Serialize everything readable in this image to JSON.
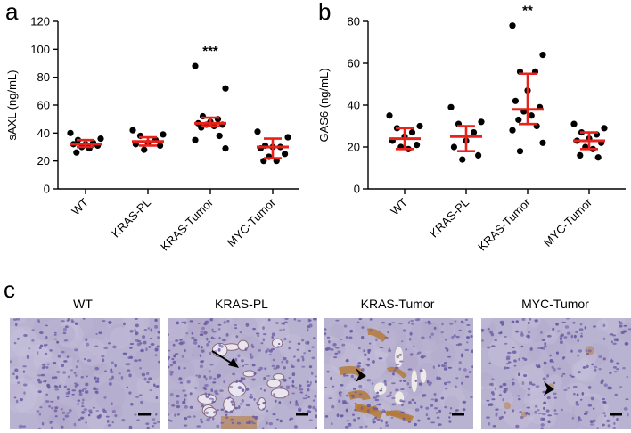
{
  "panels": {
    "a": "a",
    "b": "b",
    "c": "c"
  },
  "chart_data": [
    {
      "type": "scatter",
      "xlabel": "",
      "ylabel": "sAXL (ng/mL)",
      "ylim": [
        0,
        120
      ],
      "yticks": [
        0,
        20,
        40,
        60,
        80,
        100,
        120
      ],
      "grid": false,
      "categories": [
        "WT",
        "KRAS-PL",
        "KRAS-Tumor",
        "MYC-Tumor"
      ],
      "significance": [
        "",
        "",
        "***",
        ""
      ],
      "groups": [
        {
          "name": "WT",
          "mean": 32,
          "sd_low": 30,
          "sd_high": 35,
          "points": [
            40,
            36,
            35,
            33,
            32,
            32,
            31,
            30,
            29,
            26
          ]
        },
        {
          "name": "KRAS-PL",
          "mean": 34,
          "sd_low": 31,
          "sd_high": 37,
          "points": [
            42,
            39,
            38,
            35,
            33,
            32,
            31,
            28
          ]
        },
        {
          "name": "KRAS-Tumor",
          "mean": 47,
          "sd_low": 45,
          "sd_high": 51,
          "points": [
            88,
            72,
            52,
            50,
            48,
            47,
            46,
            46,
            45,
            44,
            38,
            35,
            29
          ]
        },
        {
          "name": "MYC-Tumor",
          "mean": 30,
          "sd_low": 22,
          "sd_high": 36,
          "points": [
            41,
            37,
            31,
            30,
            30,
            29,
            25,
            23,
            20,
            20
          ]
        }
      ]
    },
    {
      "type": "scatter",
      "xlabel": "",
      "ylabel": "GAS6 (ng/mL)",
      "ylim": [
        0,
        80
      ],
      "yticks": [
        0,
        20,
        40,
        60,
        80
      ],
      "grid": false,
      "categories": [
        "WT",
        "KRAS-PL",
        "KRAS-Tumor",
        "MYC-Tumor"
      ],
      "significance": [
        "",
        "",
        "**",
        ""
      ],
      "groups": [
        {
          "name": "WT",
          "mean": 24,
          "sd_low": 19,
          "sd_high": 29,
          "points": [
            35,
            30,
            29,
            27,
            25,
            23,
            21,
            20,
            19
          ]
        },
        {
          "name": "KRAS-PL",
          "mean": 25,
          "sd_low": 18,
          "sd_high": 30,
          "points": [
            39,
            32,
            31,
            27,
            23,
            20,
            16,
            14
          ]
        },
        {
          "name": "KRAS-Tumor",
          "mean": 38,
          "sd_low": 31,
          "sd_high": 55,
          "points": [
            78,
            64,
            56,
            56,
            47,
            42,
            39,
            37,
            35,
            33,
            30,
            28,
            22,
            18
          ]
        },
        {
          "name": "MYC-Tumor",
          "mean": 23,
          "sd_low": 19,
          "sd_high": 27,
          "points": [
            31,
            29,
            27,
            26,
            24,
            23,
            22,
            20,
            19,
            16,
            15
          ]
        }
      ]
    }
  ],
  "micrographs": [
    {
      "title": "WT",
      "annotation": "none",
      "scale_bar": true
    },
    {
      "title": "KRAS-PL",
      "annotation": "arrow",
      "scale_bar": true
    },
    {
      "title": "KRAS-Tumor",
      "annotation": "arrowhead",
      "scale_bar": true
    },
    {
      "title": "MYC-Tumor",
      "annotation": "arrowhead",
      "scale_bar": true
    }
  ],
  "colors": {
    "dot": "#000000",
    "errorbar": "#e8221a",
    "axis": "#000000",
    "tissue": "#b9b3d2",
    "nuclei": "#6a5aa3",
    "brown_stain": "#b47a3a"
  }
}
